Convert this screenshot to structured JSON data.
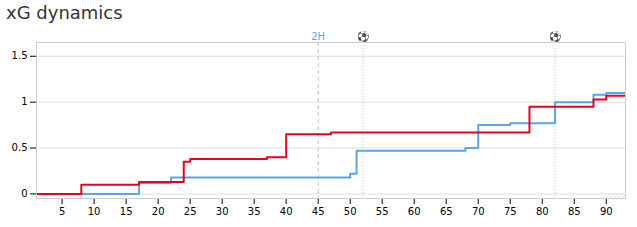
{
  "chart_data": {
    "type": "line",
    "title": "xG dynamics",
    "title_color": "#333333",
    "xlim": [
      1,
      93
    ],
    "ylim": [
      -0.05,
      1.65
    ],
    "xticks": [
      5,
      10,
      15,
      20,
      25,
      30,
      35,
      40,
      45,
      50,
      55,
      60,
      65,
      70,
      75,
      80,
      85,
      90
    ],
    "yticks": [
      0,
      0.5,
      1,
      1.5
    ],
    "grid": true,
    "series": [
      {
        "color": "#5ba4e5",
        "x": [
          1,
          17,
          17,
          22,
          22,
          50,
          50,
          51,
          51,
          68,
          68,
          70,
          70,
          75,
          75,
          82,
          82,
          88,
          88,
          90,
          90,
          93
        ],
        "values": [
          0,
          0,
          0.12,
          0.12,
          0.18,
          0.18,
          0.22,
          0.22,
          0.47,
          0.47,
          0.5,
          0.5,
          0.75,
          0.75,
          0.77,
          0.77,
          1.0,
          1.0,
          1.08,
          1.08,
          1.1,
          1.1
        ]
      },
      {
        "color": "#e8001e",
        "x": [
          1,
          8,
          8,
          17,
          17,
          24,
          24,
          25,
          25,
          37,
          37,
          40,
          40,
          47,
          47,
          78,
          78,
          88,
          88,
          90,
          90,
          93
        ],
        "values": [
          0,
          0,
          0.1,
          0.1,
          0.13,
          0.13,
          0.35,
          0.35,
          0.38,
          0.38,
          0.4,
          0.4,
          0.65,
          0.65,
          0.67,
          0.67,
          0.95,
          0.95,
          1.03,
          1.03,
          1.07,
          1.07
        ]
      }
    ],
    "vlines": [
      {
        "x": 45,
        "line_style": "dashed",
        "color": "#bbbbbb"
      },
      {
        "x": 52,
        "line_style": "dotted",
        "color": "#aacce8"
      },
      {
        "x": 82,
        "line_style": "dotted",
        "color": "#aacce8"
      }
    ],
    "annotations": [
      {
        "x": 45,
        "text": "2H",
        "color": "#5ba4e5"
      },
      {
        "x": 52,
        "text": "⚽",
        "color": "#5ba4e5"
      },
      {
        "x": 82,
        "text": "⚽",
        "color": "#5ba4e5"
      }
    ],
    "hatch": {
      "x": [
        90,
        93
      ],
      "y": [
        -0.05,
        0
      ],
      "color": "#cccccc"
    }
  }
}
